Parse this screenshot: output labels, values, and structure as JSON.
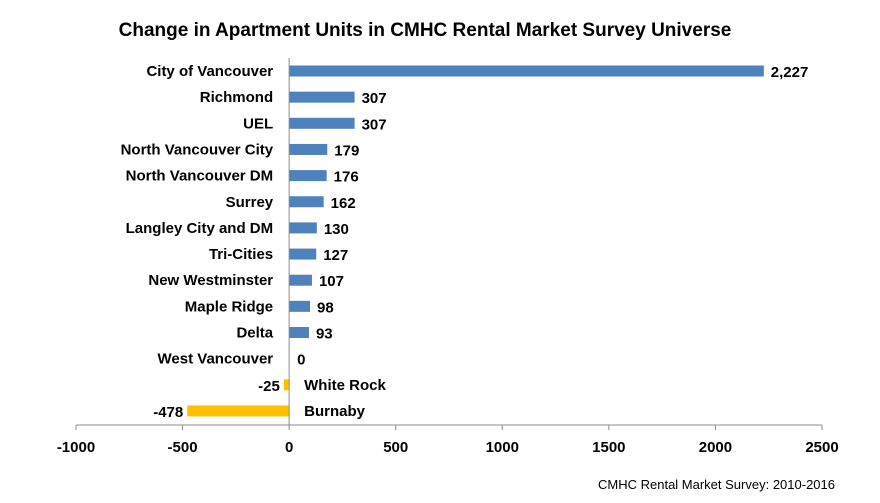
{
  "chart_data": {
    "type": "bar",
    "orientation": "horizontal",
    "title": "Change in Apartment Units in CMHC Rental Market Survey Universe",
    "source": "CMHC Rental Market Survey: 2010-2016",
    "xlabel": "",
    "ylabel": "",
    "xlim": [
      -1000,
      2500
    ],
    "x_ticks": [
      -1000,
      -500,
      0,
      500,
      1000,
      1500,
      2000,
      2500
    ],
    "grid": false,
    "legend": "none",
    "colors": {
      "positive": "#4F81BD",
      "negative": "#FFC000"
    },
    "categories": [
      "City of Vancouver",
      "Richmond",
      "UEL",
      "North Vancouver City",
      "North Vancouver DM",
      "Surrey",
      "Langley City and DM",
      "Tri-Cities",
      "New Westminster",
      "Maple Ridge",
      "Delta",
      "West Vancouver",
      "White Rock",
      "Burnaby"
    ],
    "values": [
      2227,
      307,
      307,
      179,
      176,
      162,
      130,
      127,
      107,
      98,
      93,
      0,
      -25,
      -478
    ],
    "value_labels": [
      "2,227",
      "307",
      "307",
      "179",
      "176",
      "162",
      "130",
      "127",
      "107",
      "98",
      "93",
      "0",
      "-25",
      "-478"
    ]
  }
}
